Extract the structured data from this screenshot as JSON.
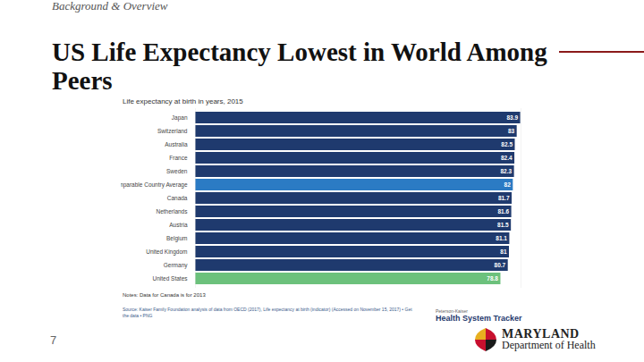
{
  "header": {
    "kicker": "Background & Overview",
    "title": "US Life Expectancy Lowest in World Among Peers"
  },
  "chart_data": {
    "type": "bar",
    "title": "Life expectancy at birth in years, 2015",
    "orientation": "horizontal",
    "categories": [
      "Japan",
      "Switzerland",
      "Australia",
      "France",
      "Sweden",
      "Comparable Country Average",
      "Canada",
      "Netherlands",
      "Austria",
      "Belgium",
      "United Kingdom",
      "Germany",
      "United States"
    ],
    "values": [
      83.9,
      83,
      82.5,
      82.4,
      82.3,
      82,
      81.7,
      81.6,
      81.5,
      81.1,
      81,
      80.7,
      78.8
    ],
    "colors": [
      "#1f3a6e",
      "#1f3a6e",
      "#1f3a6e",
      "#1f3a6e",
      "#1f3a6e",
      "#2b7bc4",
      "#1f3a6e",
      "#1f3a6e",
      "#1f3a6e",
      "#1f3a6e",
      "#1f3a6e",
      "#1f3a6e",
      "#6cc17c"
    ],
    "xlim": [
      0,
      84
    ],
    "xticks": [],
    "tick_labels": "y",
    "data_labels": true,
    "grid": false,
    "note": "Notes: Data for Canada is for 2013",
    "source": "Source: Kaiser Family Foundation analysis of data from OECD (2017), Life expectancy at birth (indicator) (Accessed on November 15, 2017) • Get the data • PNG",
    "branding": [
      "Peterson-Kaiser",
      "Health System Tracker"
    ]
  },
  "footer": {
    "page_number": 7,
    "logo": [
      "MARYLAND",
      "Department of Health"
    ]
  }
}
